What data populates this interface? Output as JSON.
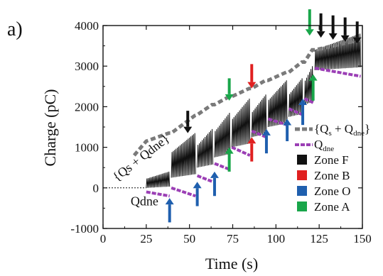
{
  "panel_label": "a)",
  "colors": {
    "charge_line": "#111111",
    "envelope_gray": "#7a7a7a",
    "qdne_purple": "#9b3fb5",
    "zone_F": "#111111",
    "zone_B": "#e02020",
    "zone_O": "#1f5fae",
    "zone_A": "#19a64a"
  },
  "chart_data": {
    "type": "line",
    "xlabel": "Time (s)",
    "ylabel": "Charge (pC)",
    "xlim": [
      0,
      150
    ],
    "ylim": [
      -1000,
      4000
    ],
    "x_ticks": [
      0,
      25,
      50,
      75,
      100,
      125,
      150
    ],
    "y_ticks": [
      -1000,
      0,
      1000,
      2000,
      3000,
      4000
    ],
    "x_tick_labels": [
      "0",
      "25",
      "50",
      "75",
      "100",
      "125",
      "150"
    ],
    "y_tick_labels": [
      "-1000",
      "0",
      "1000",
      "2000",
      "3000",
      "4000"
    ],
    "grid": false,
    "legend_position": "right",
    "legend": [
      {
        "key": "qs_qdne",
        "label": "{Q",
        "sub1": "s",
        "mid": " + Q",
        "sub2": "dne",
        "end": "}",
        "style": "gray-dashed"
      },
      {
        "key": "qdne",
        "label": "Q",
        "sub1": "dne",
        "style": "purple-dashed"
      },
      {
        "key": "zone_F",
        "label": "Zone F",
        "style": "black-box"
      },
      {
        "key": "zone_B",
        "label": "Zone B",
        "style": "red-box"
      },
      {
        "key": "zone_O",
        "label": "Zone O",
        "style": "blue-box"
      },
      {
        "key": "zone_A",
        "label": "Zone A",
        "style": "green-box"
      }
    ],
    "annotations": {
      "upper_text": "{Qs + Qdne}",
      "lower_text": "Qdne"
    },
    "steps": [
      {
        "start": 25,
        "end": 38.5,
        "base": 0,
        "peak": 400
      },
      {
        "start": 39.5,
        "end": 53.5,
        "base": 250,
        "peak": 1350
      },
      {
        "start": 54.5,
        "end": 63.5,
        "base": 500,
        "peak": 1450
      },
      {
        "start": 64.5,
        "end": 73.5,
        "base": 750,
        "peak": 1850
      },
      {
        "start": 74.5,
        "end": 85,
        "base": 1000,
        "peak": 2200
      },
      {
        "start": 86,
        "end": 94.5,
        "base": 1250,
        "peak": 2300
      },
      {
        "start": 95.5,
        "end": 106.5,
        "base": 1500,
        "peak": 2650
      },
      {
        "start": 107.5,
        "end": 115.5,
        "base": 1750,
        "peak": 2700
      },
      {
        "start": 116.5,
        "end": 121.5,
        "base": 2050,
        "peak": 3000
      },
      {
        "start": 122.5,
        "end": 149,
        "base": 2900,
        "peak": 3800
      }
    ],
    "qs_qdne_envelope": {
      "x": [
        18,
        25,
        38,
        39.5,
        53,
        54.5,
        63,
        64.5,
        73,
        74.5,
        84.5,
        86,
        94,
        95.5,
        106,
        107.5,
        115,
        116.5,
        121,
        122.5,
        149
      ],
      "y": [
        800,
        1150,
        1350,
        1350,
        1780,
        1800,
        2050,
        2050,
        2250,
        2250,
        2450,
        2450,
        2650,
        2650,
        2850,
        2850,
        3100,
        3100,
        3400,
        3400,
        3650
      ]
    },
    "qdne_segments": [
      {
        "x": [
          25,
          38.5
        ],
        "y": [
          -100,
          -200
        ]
      },
      {
        "x": [
          39.5,
          53.5
        ],
        "y": [
          0,
          -200
        ]
      },
      {
        "x": [
          54.5,
          63.5
        ],
        "y": [
          300,
          150
        ]
      },
      {
        "x": [
          64.5,
          73.5
        ],
        "y": [
          600,
          450
        ]
      },
      {
        "x": [
          74.5,
          85
        ],
        "y": [
          1000,
          800
        ]
      },
      {
        "x": [
          86,
          94.5
        ],
        "y": [
          1400,
          1250
        ]
      },
      {
        "x": [
          95.5,
          106.5
        ],
        "y": [
          1700,
          1550
        ]
      },
      {
        "x": [
          107.5,
          115.5
        ],
        "y": [
          1950,
          1800
        ]
      },
      {
        "x": [
          116.5,
          121.5
        ],
        "y": [
          2200,
          2100
        ]
      },
      {
        "x": [
          122.5,
          149
        ],
        "y": [
          2950,
          2750
        ]
      }
    ],
    "zone_arrows": [
      {
        "zone": "F",
        "x": 49,
        "y_from": 1900,
        "y_to": 1350,
        "dir": "down"
      },
      {
        "zone": "F",
        "x": 126,
        "y_from": 4300,
        "y_to": 3700,
        "dir": "down"
      },
      {
        "zone": "F",
        "x": 133,
        "y_from": 4250,
        "y_to": 3650,
        "dir": "down"
      },
      {
        "zone": "F",
        "x": 140,
        "y_from": 4200,
        "y_to": 3600,
        "dir": "down"
      },
      {
        "zone": "F",
        "x": 147,
        "y_from": 4100,
        "y_to": 3550,
        "dir": "down"
      },
      {
        "zone": "B",
        "x": 86,
        "y_from": 3050,
        "y_to": 2450,
        "dir": "down"
      },
      {
        "zone": "B",
        "x": 86,
        "y_from": 650,
        "y_to": 1250,
        "dir": "up"
      },
      {
        "zone": "A",
        "x": 73,
        "y_from": 2700,
        "y_to": 2150,
        "dir": "down"
      },
      {
        "zone": "A",
        "x": 73,
        "y_from": 400,
        "y_to": 1000,
        "dir": "up"
      },
      {
        "zone": "A",
        "x": 119.5,
        "y_from": 4400,
        "y_to": 3750,
        "dir": "down"
      },
      {
        "zone": "A",
        "x": 121.5,
        "y_from": 2150,
        "y_to": 2800,
        "dir": "up"
      },
      {
        "zone": "O",
        "x": 38.5,
        "y_from": -850,
        "y_to": -250,
        "dir": "up"
      },
      {
        "zone": "O",
        "x": 54.5,
        "y_from": -450,
        "y_to": 150,
        "dir": "up"
      },
      {
        "zone": "O",
        "x": 64.5,
        "y_from": -200,
        "y_to": 400,
        "dir": "up"
      },
      {
        "zone": "O",
        "x": 94.5,
        "y_from": 850,
        "y_to": 1450,
        "dir": "up"
      },
      {
        "zone": "O",
        "x": 106.5,
        "y_from": 1150,
        "y_to": 1700,
        "dir": "up"
      },
      {
        "zone": "O",
        "x": 115.5,
        "y_from": 1550,
        "y_to": 2200,
        "dir": "up"
      }
    ]
  }
}
